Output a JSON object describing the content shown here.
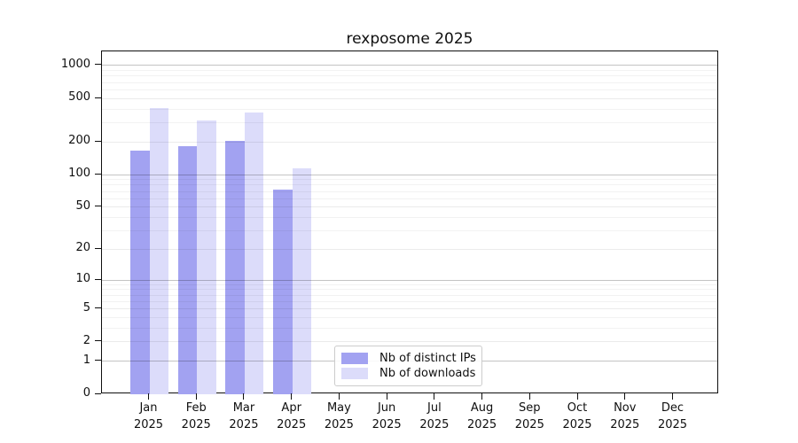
{
  "figure": {
    "title": "rexposome 2025"
  },
  "x_axis": {
    "months": [
      "Jan",
      "Feb",
      "Mar",
      "Apr",
      "May",
      "Jun",
      "Jul",
      "Aug",
      "Sep",
      "Oct",
      "Nov",
      "Dec"
    ],
    "year": "2025"
  },
  "y_axis": {
    "tick_labels": [
      "0",
      "1",
      "2",
      "5",
      "10",
      "20",
      "50",
      "100",
      "200",
      "500",
      "1000"
    ]
  },
  "legend": {
    "items": [
      {
        "label": "Nb of distinct IPs",
        "color": "#a2a2f1"
      },
      {
        "label": "Nb of downloads",
        "color": "#dcdcfa"
      }
    ]
  },
  "colors": {
    "distinct_ips": "#a2a2f1",
    "downloads": "#dcdcfa",
    "axis": "#0f0f0f",
    "grid_major": "rgba(0,0,0,0.23)",
    "grid_labeled": "rgba(0,0,0,0.08)",
    "grid_minor": "rgba(0,0,0,0.05)"
  },
  "chart_data": {
    "type": "bar",
    "title": "rexposome 2025",
    "categories": [
      "Jan 2025",
      "Feb 2025",
      "Mar 2025",
      "Apr 2025",
      "May 2025",
      "Jun 2025",
      "Jul 2025",
      "Aug 2025",
      "Sep 2025",
      "Oct 2025",
      "Nov 2025",
      "Dec 2025"
    ],
    "series": [
      {
        "name": "Nb of distinct IPs",
        "color": "#a2a2f1",
        "values": [
          166,
          183,
          204,
          73,
          0,
          0,
          0,
          0,
          0,
          0,
          0,
          0
        ]
      },
      {
        "name": "Nb of downloads",
        "color": "#dcdcfa",
        "values": [
          408,
          315,
          371,
          114,
          0,
          0,
          0,
          0,
          0,
          0,
          0,
          0
        ]
      }
    ],
    "xlabel": "",
    "ylabel": "",
    "y_scale": "log1p",
    "y_ticks": [
      0,
      1,
      2,
      5,
      10,
      20,
      50,
      100,
      200,
      500,
      1000
    ],
    "y_major_decades": [
      1,
      10,
      100,
      1000
    ],
    "y_minor_ticks": [
      3,
      4,
      6,
      7,
      8,
      9,
      30,
      40,
      60,
      70,
      80,
      90,
      300,
      400,
      600,
      700,
      800,
      900
    ],
    "ylim": [
      0,
      1346
    ],
    "grid": "horizontal",
    "legend_position": "lower-center-left"
  }
}
